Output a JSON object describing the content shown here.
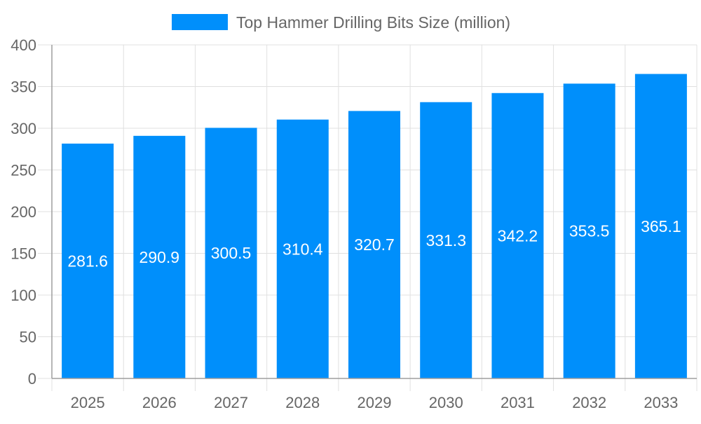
{
  "chart_data": {
    "type": "bar",
    "categories": [
      "2025",
      "2026",
      "2027",
      "2028",
      "2029",
      "2030",
      "2031",
      "2032",
      "2033"
    ],
    "series": [
      {
        "name": "Top Hammer Drilling Bits Size (million)",
        "values": [
          281.6,
          290.9,
          300.5,
          310.4,
          320.7,
          331.3,
          342.2,
          353.5,
          365.1
        ]
      }
    ],
    "ylim": [
      0,
      400
    ],
    "yticks": [
      0,
      50,
      100,
      150,
      200,
      250,
      300,
      350,
      400
    ],
    "grid": true,
    "legend": "top-center",
    "data_labels": "inside-bar",
    "colors": {
      "bar": "#008ffb",
      "grid": "#e0e0e0",
      "axis": "#9e9e9e",
      "text": "#666666",
      "label": "#ffffff"
    }
  }
}
